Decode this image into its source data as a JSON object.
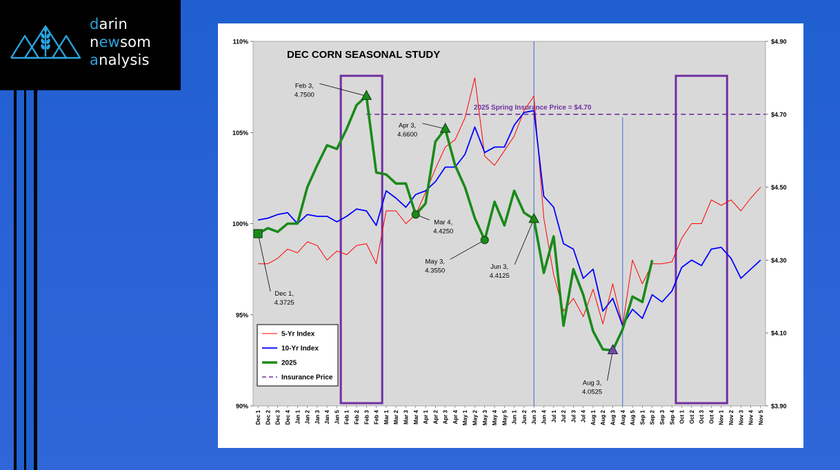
{
  "brand": {
    "line1": {
      "accent": "d",
      "rest": "arin"
    },
    "line2": {
      "pre": "n",
      "accent": "ew",
      "post": "som"
    },
    "line3": {
      "accent": "a",
      "rest": "nalysis"
    },
    "accent_color": "#2aa3e0",
    "logo_icon": "mountains-wheat-icon"
  },
  "chart_data": {
    "type": "line",
    "title": "DEC CORN SEASONAL STUDY",
    "categories": [
      "Dec 1",
      "Dec 2",
      "Dec 3",
      "Dec 4",
      "Jan 1",
      "Jan 2",
      "Jan 3",
      "Jan 4",
      "Jan 5",
      "Feb 1",
      "Feb 2",
      "Feb 3",
      "Feb 4",
      "Mar 1",
      "Mar 2",
      "Mar 3",
      "Mar 4",
      "Apr 1",
      "Apr 2",
      "Apr 3",
      "Apr 4",
      "May 1",
      "May 2",
      "May 3",
      "May 4",
      "May 5",
      "Jun 1",
      "Jun 2",
      "Jun 3",
      "Jun 4",
      "Jul 1",
      "Jul 2",
      "Jul 3",
      "Jul 4",
      "Aug 1",
      "Aug 2",
      "Aug 3",
      "Aug 4",
      "Aug 5",
      "Sep 1",
      "Sep 2",
      "Sep 3",
      "Sep 4",
      "Oct 1",
      "Oct 2",
      "Oct 3",
      "Oct 4",
      "Nov 1",
      "Nov 2",
      "Nov 3",
      "Nov 4",
      "Nov 5"
    ],
    "left_axis": {
      "ylim": [
        90,
        110
      ],
      "ticks": [
        "90%",
        "95%",
        "100%",
        "105%",
        "110%"
      ]
    },
    "right_axis": {
      "ylim": [
        3.9,
        4.9
      ],
      "ticks": [
        "$3.90",
        "$4.10",
        "$4.30",
        "$4.50",
        "$4.70",
        "$4.90"
      ]
    },
    "series": [
      {
        "name": "5-Yr Index",
        "axis": "left",
        "color": "#ff0000",
        "values": [
          97.8,
          97.8,
          98.1,
          98.6,
          98.4,
          99.0,
          98.8,
          98.0,
          98.5,
          98.3,
          98.8,
          98.9,
          97.8,
          100.7,
          100.7,
          100.0,
          100.5,
          101.7,
          103.0,
          104.2,
          104.6,
          105.8,
          108.0,
          103.7,
          103.2,
          104.0,
          104.8,
          106.2,
          107.0,
          100.3,
          97.2,
          95.2,
          95.9,
          94.9,
          96.4,
          94.5,
          96.7,
          94.4,
          98.0,
          96.7,
          97.8,
          97.8,
          97.9,
          99.2,
          100.0,
          100.0,
          101.3,
          101.0,
          101.3,
          100.7,
          101.4,
          102.0
        ]
      },
      {
        "name": "10-Yr Index",
        "axis": "left",
        "color": "#0000ff",
        "values": [
          100.2,
          100.3,
          100.5,
          100.6,
          100.0,
          100.5,
          100.4,
          100.4,
          100.1,
          100.4,
          100.8,
          100.7,
          99.9,
          101.8,
          101.4,
          100.9,
          101.6,
          101.8,
          102.3,
          103.1,
          103.1,
          103.8,
          105.3,
          103.9,
          104.2,
          104.2,
          105.4,
          106.1,
          106.2,
          101.5,
          100.9,
          98.9,
          98.6,
          97.0,
          97.5,
          95.2,
          95.9,
          94.4,
          95.3,
          94.8,
          96.1,
          95.7,
          96.3,
          97.6,
          98.0,
          97.7,
          98.6,
          98.7,
          98.1,
          97.0,
          97.5,
          98.0
        ]
      },
      {
        "name": "2025",
        "axis": "right",
        "color": "#1a8a1a",
        "values": [
          4.3725,
          4.3875,
          4.3775,
          4.4,
          4.4,
          4.5,
          4.56,
          4.615,
          4.605,
          4.66,
          4.725,
          4.75,
          4.54,
          4.535,
          4.51,
          4.51,
          4.425,
          4.455,
          4.625,
          4.66,
          4.56,
          4.5,
          4.415,
          4.355,
          4.46,
          4.395,
          4.49,
          4.43,
          4.4125,
          4.265,
          4.365,
          4.12,
          4.275,
          4.205,
          4.105,
          4.055,
          4.0525,
          4.11,
          4.2,
          4.185,
          4.3,
          null,
          null,
          null,
          null,
          null,
          null,
          null,
          null,
          null,
          null,
          null
        ]
      },
      {
        "name": "Insurance Price",
        "axis": "right",
        "color": "#7030a0",
        "value": 4.7
      }
    ],
    "insurance_label": "2025 Spring Insurance Price = $4.70",
    "highlight_boxes": [
      [
        "Feb 1",
        "Feb 4"
      ],
      [
        "Oct 1",
        "Nov 1"
      ]
    ],
    "vertical_lines": [
      "Jun 3",
      "Aug 4"
    ],
    "annotations": [
      {
        "label": "Dec 1,",
        "value_text": "4.3725",
        "at": "Dec 1",
        "marker": "square"
      },
      {
        "label": "Feb 3,",
        "value_text": "4.7500",
        "at": "Feb 3",
        "marker": "triangle"
      },
      {
        "label": "Mar 4,",
        "value_text": "4.4250",
        "at": "Mar 4",
        "marker": "circle"
      },
      {
        "label": "Apr 3,",
        "value_text": "4.6600",
        "at": "Apr 3",
        "marker": "triangle"
      },
      {
        "label": "May 3,",
        "value_text": "4.3550",
        "at": "May 3",
        "marker": "circle"
      },
      {
        "label": "Jun 3,",
        "value_text": "4.4125",
        "at": "Jun 3",
        "marker": "triangle"
      },
      {
        "label": "Aug 3,",
        "value_text": "4.0525",
        "at": "Aug 3",
        "marker": "triangle-down"
      }
    ],
    "legend": {
      "placement": "bottom-left",
      "entries": [
        "5-Yr Index",
        "10-Yr Index",
        "2025",
        "Insurance Price"
      ]
    },
    "grid": false
  }
}
